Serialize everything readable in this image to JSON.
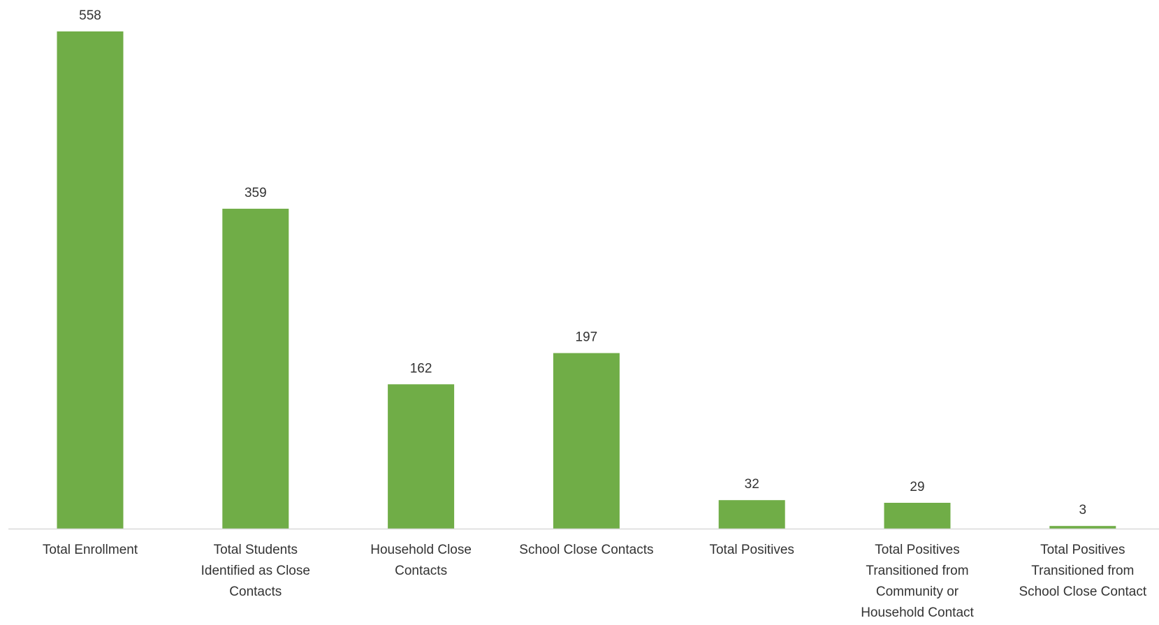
{
  "chart_data": {
    "type": "bar",
    "title": "",
    "xlabel": "",
    "ylabel": "",
    "ylim": [
      0,
      558
    ],
    "grid": false,
    "legend": "none",
    "bar_color": "#70AD47",
    "axis_color": "#D9D9D9",
    "text_color": "#333333",
    "categories": [
      [
        "Total Enrollment"
      ],
      [
        "Total Students",
        "Identified as Close",
        "Contacts"
      ],
      [
        "Household Close",
        "Contacts"
      ],
      [
        "School Close Contacts"
      ],
      [
        "Total Positives"
      ],
      [
        "Total Positives",
        "Transitioned from",
        "Community or",
        "Household Contact"
      ],
      [
        "Total Positives",
        "Transitioned from",
        "School Close Contact"
      ]
    ],
    "values": [
      558,
      359,
      162,
      197,
      32,
      29,
      3
    ],
    "data_labels": [
      "558",
      "359",
      "162",
      "197",
      "32",
      "29",
      "3"
    ]
  }
}
